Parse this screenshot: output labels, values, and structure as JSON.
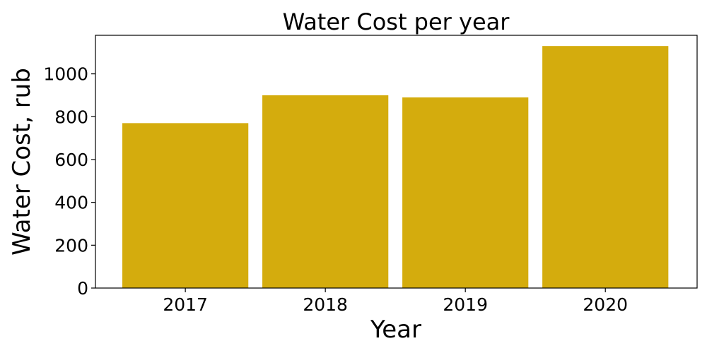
{
  "chart_data": {
    "type": "bar",
    "title": "Water Cost per year",
    "xlabel": "Year",
    "ylabel": "Water Cost, rub",
    "categories": [
      "2017",
      "2018",
      "2019",
      "2020"
    ],
    "values": [
      770,
      900,
      890,
      1130
    ],
    "ylim": [
      0,
      1180
    ],
    "yticks": [
      0,
      200,
      400,
      600,
      800,
      1000
    ],
    "bar_color": "#d4ac0d",
    "grid": false,
    "legend": "none"
  }
}
